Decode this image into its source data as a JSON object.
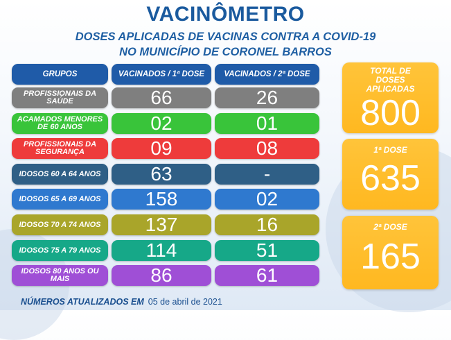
{
  "title": "VACINÔMETRO",
  "subtitle_line1": "DOSES APLICADAS DE VACINAS CONTRA A COVID-19",
  "subtitle_line2": "NO MUNICÍPIO DE CORONEL BARROS",
  "headers": {
    "groups": "GRUPOS",
    "dose1": "VACINADOS / 1ª DOSE",
    "dose2": "VACINADOS / 2ª DOSE"
  },
  "rows": [
    {
      "group": "PROFISSIONAIS DA SAÚDE",
      "dose1": "66",
      "dose2": "26",
      "color": "#7f7f7f"
    },
    {
      "group": "ACAMADOS MENORES DE 60 ANOS",
      "dose1": "02",
      "dose2": "01",
      "color": "#39c43a"
    },
    {
      "group": "PROFISSIONAIS DA SEGURANÇA",
      "dose1": "09",
      "dose2": "08",
      "color": "#ee3b3b"
    },
    {
      "group": "IDOSOS 60 A 64 ANOS",
      "dose1": "63",
      "dose2": "-",
      "color": "#2f5f86"
    },
    {
      "group": "IDOSOS 65 A 69 ANOS",
      "dose1": "158",
      "dose2": "02",
      "color": "#2f79cf"
    },
    {
      "group": "IDOSOS 70 A 74 ANOS",
      "dose1": "137",
      "dose2": "16",
      "color": "#a9a52a"
    },
    {
      "group": "IDOSOS 75 A 79 ANOS",
      "dose1": "114",
      "dose2": "51",
      "color": "#16a888"
    },
    {
      "group": "IDOSOS 80 ANOS OU MAIS",
      "dose1": "86",
      "dose2": "61",
      "color": "#9f4fd6"
    }
  ],
  "totals": [
    {
      "label": "TOTAL DE DOSES APLICADAS",
      "value": "800"
    },
    {
      "label": "1ª DOSE",
      "value": "635"
    },
    {
      "label": "2ª DOSE",
      "value": "165"
    }
  ],
  "footer": {
    "label": "NÚMEROS ATUALIZADOS EM",
    "date": "05 de abril de 2021"
  },
  "colors": {
    "header_blue": "#1f5ba8",
    "title_blue": "#1a5a9e",
    "total_orange": "#ffb820"
  }
}
